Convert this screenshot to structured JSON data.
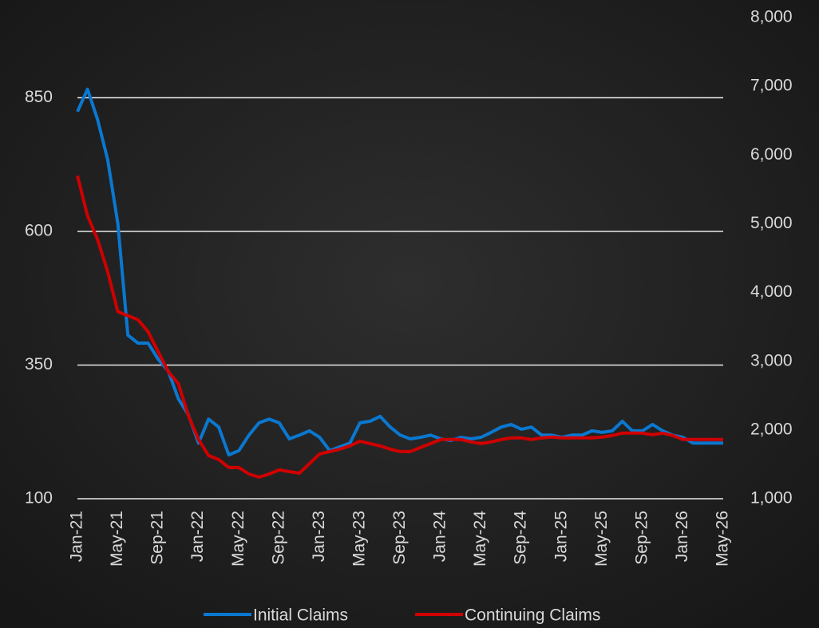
{
  "chart_data": {
    "type": "line",
    "categories": [
      "Jan-21",
      null,
      null,
      null,
      "May-21",
      null,
      null,
      null,
      "Sep-21",
      null,
      null,
      null,
      "Jan-22",
      null,
      null,
      null,
      "May-22",
      null,
      null,
      null,
      "Sep-22",
      null,
      null,
      null,
      "Jan-23",
      null,
      null,
      null,
      "May-23",
      null,
      null,
      null,
      "Sep-23",
      null,
      null,
      null,
      "Jan-24",
      null,
      null,
      null,
      "May-24",
      null,
      null,
      null,
      "Sep-24",
      null,
      null,
      null,
      "Jan-25",
      null,
      null,
      null,
      "May-25",
      null,
      null,
      null,
      "Sep-25",
      null,
      null,
      null,
      "Jan-26",
      null,
      null,
      null,
      "May-26"
    ],
    "series": [
      {
        "name": "Initial Claims",
        "color": "#0a78d0",
        "axis": "y",
        "values": [
          824,
          866,
          809,
          734,
          615,
          406,
          391,
          391,
          361,
          339,
          287,
          257,
          204,
          249,
          234,
          182,
          190,
          219,
          242,
          249,
          242,
          212,
          219,
          227,
          215,
          190,
          197,
          204,
          242,
          245,
          254,
          234,
          219,
          212,
          215,
          219,
          212,
          209,
          215,
          212,
          215,
          224,
          234,
          239,
          230,
          234,
          219,
          219,
          215,
          219,
          219,
          227,
          224,
          227,
          245,
          227,
          227,
          239,
          227,
          219,
          215,
          204,
          204,
          204,
          204
        ]
      },
      {
        "name": "Continuing Claims",
        "color": "#d00000",
        "axis": "y2",
        "values": [
          5698,
          5117,
          4768,
          4303,
          3721,
          3663,
          3605,
          3430,
          3140,
          2849,
          2675,
          2210,
          1861,
          1628,
          1570,
          1454,
          1454,
          1360,
          1314,
          1360,
          1419,
          1395,
          1372,
          1512,
          1651,
          1686,
          1721,
          1768,
          1837,
          1802,
          1768,
          1721,
          1686,
          1686,
          1744,
          1802,
          1861,
          1861,
          1861,
          1826,
          1802,
          1826,
          1861,
          1884,
          1884,
          1861,
          1884,
          1896,
          1884,
          1884,
          1884,
          1884,
          1896,
          1919,
          1954,
          1954,
          1954,
          1930,
          1954,
          1919,
          1861,
          1861,
          1861,
          1861,
          1861
        ]
      }
    ],
    "ylim": [
      100,
      1000
    ],
    "yticks": [
      100,
      350,
      600,
      850
    ],
    "y2lim": [
      1000,
      8000
    ],
    "y2ticks": [
      {
        "value": 1000,
        "label": "1,000"
      },
      {
        "value": 2000,
        "label": "2,000"
      },
      {
        "value": 3000,
        "label": "3,000"
      },
      {
        "value": 4000,
        "label": "4,000"
      },
      {
        "value": 5000,
        "label": "5,000"
      },
      {
        "value": 6000,
        "label": "6,000"
      },
      {
        "value": 7000,
        "label": "7,000"
      },
      {
        "value": 8000,
        "label": "8,000"
      }
    ],
    "grid": true,
    "legend": "bottom"
  }
}
